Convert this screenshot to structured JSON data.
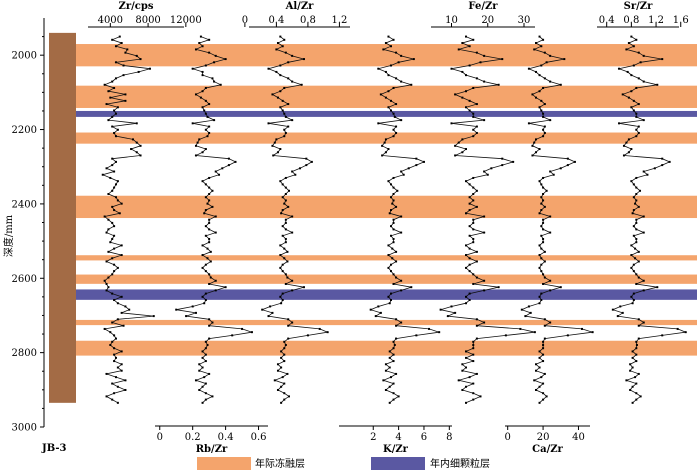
{
  "chart_data": {
    "type": "line",
    "y": {
      "label": "深度/mm",
      "range": [
        1900,
        3000
      ],
      "ticks": [
        2000,
        2200,
        2400,
        2600,
        2800,
        3000
      ],
      "reversed": true
    },
    "core_label": "JB-3",
    "core_color": "#a36b45",
    "bands": [
      {
        "kind": "interannual",
        "from": 1970,
        "to": 2030
      },
      {
        "kind": "interannual",
        "from": 2082,
        "to": 2142
      },
      {
        "kind": "intraannual",
        "from": 2150,
        "to": 2166
      },
      {
        "kind": "interannual",
        "from": 2208,
        "to": 2238
      },
      {
        "kind": "interannual",
        "from": 2378,
        "to": 2438
      },
      {
        "kind": "interannual",
        "from": 2538,
        "to": 2552
      },
      {
        "kind": "interannual",
        "from": 2590,
        "to": 2615
      },
      {
        "kind": "intraannual",
        "from": 2630,
        "to": 2658
      },
      {
        "kind": "interannual",
        "from": 2712,
        "to": 2726
      },
      {
        "kind": "interannual",
        "from": 2768,
        "to": 2808
      }
    ],
    "legend": [
      {
        "kind": "interannual",
        "label": "年际冻融层",
        "color": "#f4a46c"
      },
      {
        "kind": "intraannual",
        "label": "年内细颗粒层",
        "color": "#5a58a2"
      }
    ],
    "panels": [
      {
        "name": "Zr/cps",
        "axis": "top",
        "min": 1000,
        "max": 13500,
        "ticks": [
          4000,
          8000,
          12000
        ],
        "tick_labels": [
          "4000",
          "8000",
          "12000"
        ],
        "values": [
          5000,
          4200,
          5200,
          4600,
          5800,
          5600,
          6800,
          7200,
          4600,
          5400,
          8200,
          7000,
          5400,
          4600,
          4200,
          3400,
          4400,
          3800,
          5600,
          4000,
          5600,
          3600,
          4800,
          4400,
          4600,
          4200,
          3800,
          6800,
          4200,
          4800,
          4400,
          4600,
          6400,
          6800,
          7200,
          6200,
          6800,
          7200,
          4200,
          4600,
          4200,
          3600,
          4400,
          3200,
          4000,
          4800,
          4600,
          4400,
          4200,
          3800,
          4600,
          4800,
          5200,
          4200,
          4400,
          5000,
          3400,
          3800,
          4200,
          4400,
          3800,
          3600,
          4400,
          4200,
          4000,
          5200,
          4400,
          3800,
          5200,
          4200,
          3600,
          4400,
          4800,
          4400,
          4200,
          3800,
          3400,
          3600,
          3800,
          3600,
          4200,
          5200,
          4400,
          4800,
          5600,
          6000,
          5200,
          8600,
          4800,
          4200,
          5400,
          3400,
          4000,
          4400,
          4600,
          4200,
          4000,
          4400,
          5200,
          4400,
          4600,
          4400,
          5200,
          4800,
          5200,
          3600,
          4600,
          5600,
          4200,
          4800,
          5600,
          4400,
          3600,
          4200,
          4800
        ]
      },
      {
        "name": "Rb/Zr",
        "axis": "bottom",
        "min": -0.12,
        "max": 0.7,
        "ticks": [
          0,
          0.2,
          0.4,
          0.6
        ],
        "tick_labels": [
          "0",
          "0.2",
          "0.4",
          "0.6"
        ],
        "values": [
          0.25,
          0.3,
          0.24,
          0.26,
          0.22,
          0.3,
          0.34,
          0.4,
          0.33,
          0.28,
          0.2,
          0.26,
          0.26,
          0.32,
          0.33,
          0.37,
          0.28,
          0.26,
          0.22,
          0.25,
          0.28,
          0.3,
          0.26,
          0.27,
          0.28,
          0.29,
          0.33,
          0.2,
          0.3,
          0.28,
          0.3,
          0.29,
          0.24,
          0.23,
          0.22,
          0.28,
          0.26,
          0.22,
          0.42,
          0.46,
          0.42,
          0.38,
          0.34,
          0.36,
          0.3,
          0.26,
          0.28,
          0.3,
          0.32,
          0.3,
          0.28,
          0.3,
          0.29,
          0.32,
          0.28,
          0.27,
          0.34,
          0.3,
          0.3,
          0.28,
          0.3,
          0.34,
          0.28,
          0.3,
          0.3,
          0.26,
          0.29,
          0.31,
          0.26,
          0.29,
          0.31,
          0.28,
          0.26,
          0.28,
          0.3,
          0.31,
          0.34,
          0.3,
          0.4,
          0.34,
          0.28,
          0.26,
          0.28,
          0.27,
          0.2,
          0.1,
          0.22,
          0.16,
          0.3,
          0.32,
          0.3,
          0.5,
          0.56,
          0.44,
          0.3,
          0.28,
          0.29,
          0.28,
          0.26,
          0.28,
          0.26,
          0.28,
          0.24,
          0.26,
          0.24,
          0.3,
          0.27,
          0.22,
          0.28,
          0.26,
          0.24,
          0.28,
          0.32,
          0.28,
          0.26
        ]
      },
      {
        "name": "Al/Zr",
        "axis": "top",
        "min": -0.1,
        "max": 1.55,
        "ticks": [
          0,
          0.4,
          0.8,
          1.2
        ],
        "tick_labels": [
          "0",
          "0.4",
          "0.8",
          "1.2"
        ],
        "values": [
          0.45,
          0.5,
          0.42,
          0.48,
          0.4,
          0.52,
          0.6,
          0.75,
          0.55,
          0.45,
          0.3,
          0.4,
          0.45,
          0.55,
          0.6,
          0.72,
          0.5,
          0.45,
          0.35,
          0.42,
          0.48,
          0.55,
          0.45,
          0.48,
          0.5,
          0.52,
          0.6,
          0.3,
          0.55,
          0.5,
          0.52,
          0.5,
          0.4,
          0.38,
          0.35,
          0.45,
          0.42,
          0.36,
          0.78,
          0.85,
          0.78,
          0.7,
          0.6,
          0.64,
          0.52,
          0.45,
          0.48,
          0.52,
          0.56,
          0.52,
          0.48,
          0.52,
          0.5,
          0.55,
          0.48,
          0.46,
          0.6,
          0.52,
          0.52,
          0.48,
          0.52,
          0.6,
          0.48,
          0.52,
          0.52,
          0.45,
          0.5,
          0.54,
          0.45,
          0.5,
          0.54,
          0.48,
          0.45,
          0.48,
          0.52,
          0.54,
          0.6,
          0.52,
          0.75,
          0.6,
          0.48,
          0.45,
          0.48,
          0.46,
          0.32,
          0.22,
          0.35,
          0.3,
          0.55,
          0.6,
          0.55,
          0.95,
          1.05,
          0.8,
          0.55,
          0.5,
          0.52,
          0.5,
          0.46,
          0.5,
          0.46,
          0.5,
          0.42,
          0.46,
          0.42,
          0.54,
          0.48,
          0.38,
          0.5,
          0.46,
          0.42,
          0.5,
          0.56,
          0.5,
          0.46
        ]
      },
      {
        "name": "K/Zr",
        "axis": "bottom",
        "min": -2.2,
        "max": 9.0,
        "ticks": [
          2,
          4,
          6,
          8
        ],
        "tick_labels": [
          "2",
          "4",
          "6",
          "8"
        ],
        "values": [
          3.2,
          3.6,
          3.0,
          3.4,
          2.8,
          3.8,
          4.2,
          5.2,
          4.0,
          3.4,
          2.4,
          3.0,
          3.2,
          3.8,
          4.2,
          5.0,
          3.6,
          3.2,
          2.6,
          3.0,
          3.4,
          3.8,
          3.2,
          3.4,
          3.6,
          3.7,
          4.2,
          2.4,
          3.8,
          3.6,
          3.8,
          3.6,
          3.0,
          2.9,
          2.7,
          3.2,
          3.0,
          2.7,
          5.4,
          6.0,
          5.4,
          4.8,
          4.2,
          4.4,
          3.6,
          3.2,
          3.4,
          3.6,
          3.9,
          3.6,
          3.4,
          3.6,
          3.5,
          3.8,
          3.4,
          3.3,
          4.2,
          3.6,
          3.6,
          3.4,
          3.6,
          4.2,
          3.4,
          3.6,
          3.6,
          3.2,
          3.5,
          3.8,
          3.2,
          3.5,
          3.8,
          3.4,
          3.2,
          3.4,
          3.6,
          3.8,
          4.2,
          3.6,
          5.0,
          4.2,
          3.4,
          3.2,
          3.4,
          3.3,
          2.4,
          1.8,
          2.6,
          2.2,
          3.8,
          4.2,
          3.8,
          6.4,
          7.2,
          5.4,
          3.8,
          3.6,
          3.7,
          3.6,
          3.3,
          3.6,
          3.3,
          3.6,
          3.0,
          3.3,
          3.0,
          3.8,
          3.4,
          2.8,
          3.6,
          3.3,
          3.0,
          3.6,
          4.0,
          3.6,
          3.3
        ]
      },
      {
        "name": "Fe/Zr",
        "axis": "top",
        "min": -2.0,
        "max": 38.0,
        "ticks": [
          10,
          20,
          30
        ],
        "tick_labels": [
          "10",
          "20",
          "30"
        ],
        "values": [
          14,
          16,
          13,
          15,
          12,
          17,
          19,
          24,
          18,
          15,
          10,
          13,
          14,
          17,
          19,
          23,
          16,
          14,
          11,
          13,
          15,
          17,
          14,
          15,
          16,
          16,
          19,
          10,
          17,
          16,
          17,
          16,
          13,
          12,
          11,
          14,
          13,
          11,
          24,
          27,
          24,
          21,
          19,
          20,
          16,
          14,
          15,
          16,
          17,
          16,
          15,
          16,
          15,
          17,
          15,
          14,
          19,
          16,
          16,
          15,
          16,
          19,
          15,
          16,
          16,
          14,
          15,
          17,
          14,
          15,
          17,
          15,
          14,
          15,
          16,
          17,
          19,
          16,
          23,
          19,
          15,
          14,
          15,
          14,
          10,
          7,
          11,
          9,
          17,
          19,
          17,
          29,
          33,
          25,
          17,
          16,
          16,
          16,
          14,
          16,
          14,
          16,
          13,
          14,
          13,
          17,
          15,
          12,
          16,
          14,
          13,
          16,
          18,
          16,
          14
        ]
      },
      {
        "name": "Ca/Zr",
        "axis": "bottom",
        "min": -10.0,
        "max": 55.0,
        "ticks": [
          0,
          20,
          40
        ],
        "tick_labels": [
          "0",
          "20",
          "40"
        ],
        "values": [
          18,
          20,
          16,
          19,
          15,
          21,
          24,
          32,
          22,
          19,
          12,
          16,
          18,
          21,
          24,
          30,
          20,
          18,
          14,
          16,
          19,
          21,
          18,
          19,
          20,
          20,
          24,
          12,
          21,
          20,
          21,
          20,
          16,
          15,
          14,
          18,
          16,
          14,
          34,
          38,
          34,
          30,
          24,
          26,
          20,
          18,
          19,
          20,
          22,
          20,
          19,
          20,
          19,
          21,
          19,
          18,
          24,
          20,
          20,
          19,
          20,
          24,
          19,
          20,
          20,
          18,
          19,
          21,
          18,
          19,
          21,
          19,
          18,
          19,
          20,
          21,
          24,
          20,
          30,
          24,
          19,
          18,
          19,
          18,
          12,
          8,
          13,
          10,
          21,
          24,
          21,
          42,
          48,
          34,
          21,
          20,
          20,
          20,
          18,
          20,
          18,
          20,
          16,
          18,
          16,
          21,
          19,
          15,
          20,
          18,
          16,
          20,
          22,
          20,
          18
        ]
      },
      {
        "name": "Sr/Zr",
        "axis": "top",
        "min": 0.0,
        "max": 1.75,
        "ticks": [
          0.4,
          0.8,
          1.2,
          1.6
        ],
        "tick_labels": [
          "0.4",
          "0.8",
          "1.2",
          "1.6"
        ],
        "values": [
          0.8,
          0.88,
          0.76,
          0.84,
          0.72,
          0.92,
          1.0,
          1.3,
          0.95,
          0.84,
          0.6,
          0.74,
          0.8,
          0.92,
          1.0,
          1.22,
          0.88,
          0.8,
          0.66,
          0.76,
          0.84,
          0.92,
          0.8,
          0.84,
          0.88,
          0.88,
          1.0,
          0.6,
          0.92,
          0.88,
          0.92,
          0.88,
          0.76,
          0.72,
          0.68,
          0.8,
          0.76,
          0.68,
          1.3,
          1.42,
          1.3,
          1.18,
          1.0,
          1.06,
          0.88,
          0.8,
          0.84,
          0.88,
          0.94,
          0.88,
          0.84,
          0.88,
          0.86,
          0.92,
          0.84,
          0.82,
          1.0,
          0.88,
          0.88,
          0.84,
          0.88,
          1.0,
          0.84,
          0.88,
          0.88,
          0.8,
          0.86,
          0.92,
          0.8,
          0.86,
          0.92,
          0.84,
          0.8,
          0.84,
          0.88,
          0.92,
          1.0,
          0.88,
          1.22,
          1.0,
          0.84,
          0.8,
          0.84,
          0.82,
          0.62,
          0.5,
          0.66,
          0.58,
          0.92,
          1.0,
          0.92,
          1.55,
          1.68,
          1.3,
          0.92,
          0.88,
          0.89,
          0.88,
          0.82,
          0.88,
          0.82,
          0.88,
          0.78,
          0.82,
          0.78,
          0.92,
          0.86,
          0.72,
          0.88,
          0.82,
          0.78,
          0.88,
          0.95,
          0.88,
          0.82
        ]
      }
    ]
  }
}
